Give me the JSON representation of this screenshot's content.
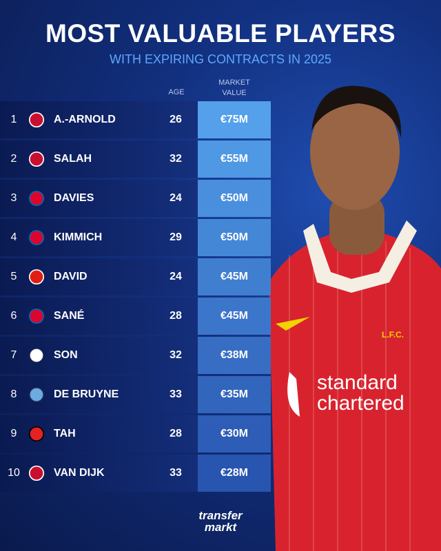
{
  "header": {
    "title": "MOST VALUABLE PLAYERS",
    "subtitle": "WITH EXPIRING CONTRACTS IN 2025"
  },
  "table": {
    "columns": [
      "AGE",
      "MARKET VALUE"
    ],
    "rows": [
      {
        "rank": "1",
        "club": "liverpool",
        "name": "A.-ARNOLD",
        "age": "26",
        "value": "€75M"
      },
      {
        "rank": "2",
        "club": "liverpool",
        "name": "SALAH",
        "age": "32",
        "value": "€55M"
      },
      {
        "rank": "3",
        "club": "bayern",
        "name": "DAVIES",
        "age": "24",
        "value": "€50M"
      },
      {
        "rank": "4",
        "club": "bayern",
        "name": "KIMMICH",
        "age": "29",
        "value": "€50M"
      },
      {
        "rank": "5",
        "club": "lille",
        "name": "DAVID",
        "age": "24",
        "value": "€45M"
      },
      {
        "rank": "6",
        "club": "bayern",
        "name": "SANÉ",
        "age": "28",
        "value": "€45M"
      },
      {
        "rank": "7",
        "club": "tottenham",
        "name": "SON",
        "age": "32",
        "value": "€38M"
      },
      {
        "rank": "8",
        "club": "city",
        "name": "DE BRUYNE",
        "age": "33",
        "value": "€35M"
      },
      {
        "rank": "9",
        "club": "leverkusen",
        "name": "TAH",
        "age": "28",
        "value": "€30M"
      },
      {
        "rank": "10",
        "club": "liverpool",
        "name": "VAN DIJK",
        "age": "33",
        "value": "€28M"
      }
    ]
  },
  "photo": {
    "crest": "L.F.C.",
    "sponsor_line1": "standard",
    "sponsor_line2": "chartered"
  },
  "footer": {
    "logo_line1": "transfer",
    "logo_line2": "markt"
  }
}
